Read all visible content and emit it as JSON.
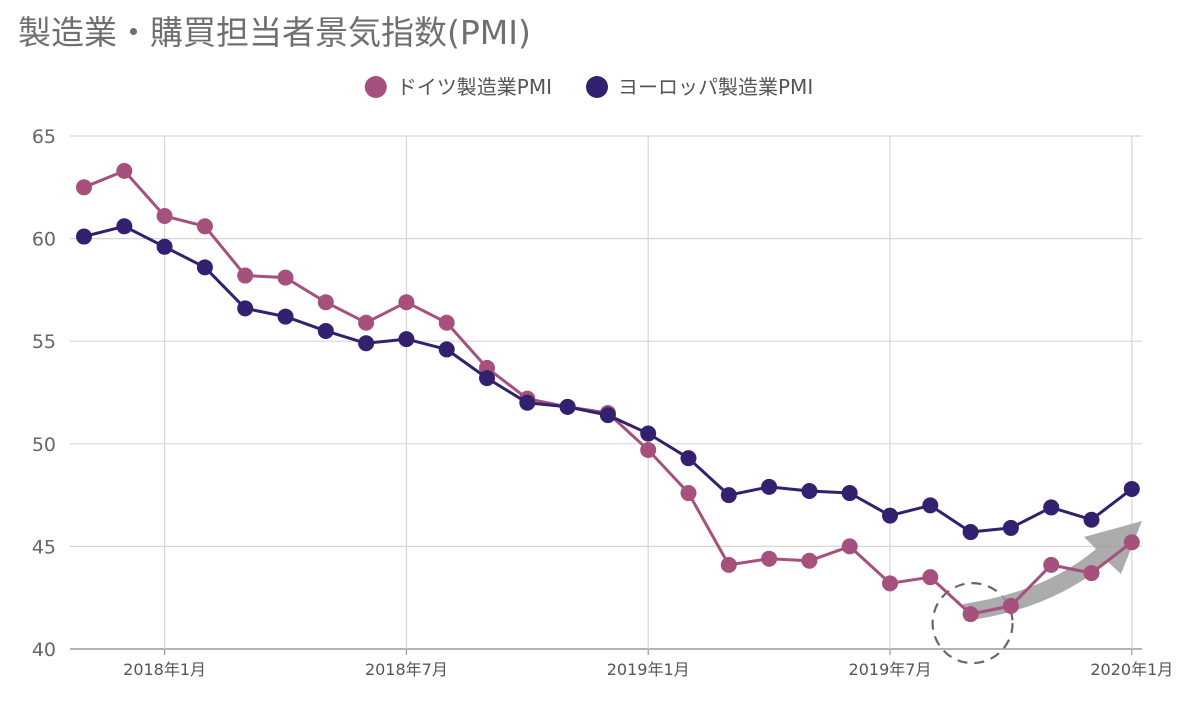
{
  "title": "製造業・購買担当者景気指数(PMI)",
  "chart_data": {
    "type": "line",
    "title": "製造業・購買担当者景気指数(PMI)",
    "xlabel": "",
    "ylabel": "",
    "ylim": [
      40,
      65
    ],
    "yticks": [
      "40",
      "45",
      "50",
      "55",
      "60",
      "65"
    ],
    "xticks": [
      {
        "label": "2018年1月",
        "index": 2
      },
      {
        "label": "2018年7月",
        "index": 8
      },
      {
        "label": "2019年1月",
        "index": 14
      },
      {
        "label": "2019年7月",
        "index": 20
      },
      {
        "label": "2020年1月",
        "index": 26
      }
    ],
    "grid": true,
    "legend_position": "top",
    "series": [
      {
        "name": "ドイツ製造業PMI",
        "color": "#a5507d",
        "values": [
          62.5,
          63.3,
          61.1,
          60.6,
          58.2,
          58.1,
          56.9,
          55.9,
          56.9,
          55.9,
          53.7,
          52.2,
          51.8,
          51.5,
          49.7,
          47.6,
          44.1,
          44.4,
          44.3,
          45.0,
          43.2,
          43.5,
          41.7,
          42.1,
          44.1,
          43.7,
          45.2
        ]
      },
      {
        "name": "ヨーロッパ製造業PMI",
        "color": "#33206e",
        "values": [
          60.1,
          60.6,
          59.6,
          58.6,
          56.6,
          56.2,
          55.5,
          54.9,
          55.1,
          54.6,
          53.2,
          52.0,
          51.8,
          51.4,
          50.5,
          49.3,
          47.5,
          47.9,
          47.7,
          47.6,
          46.5,
          47.0,
          45.7,
          45.9,
          46.9,
          46.3,
          47.8
        ]
      }
    ]
  }
}
